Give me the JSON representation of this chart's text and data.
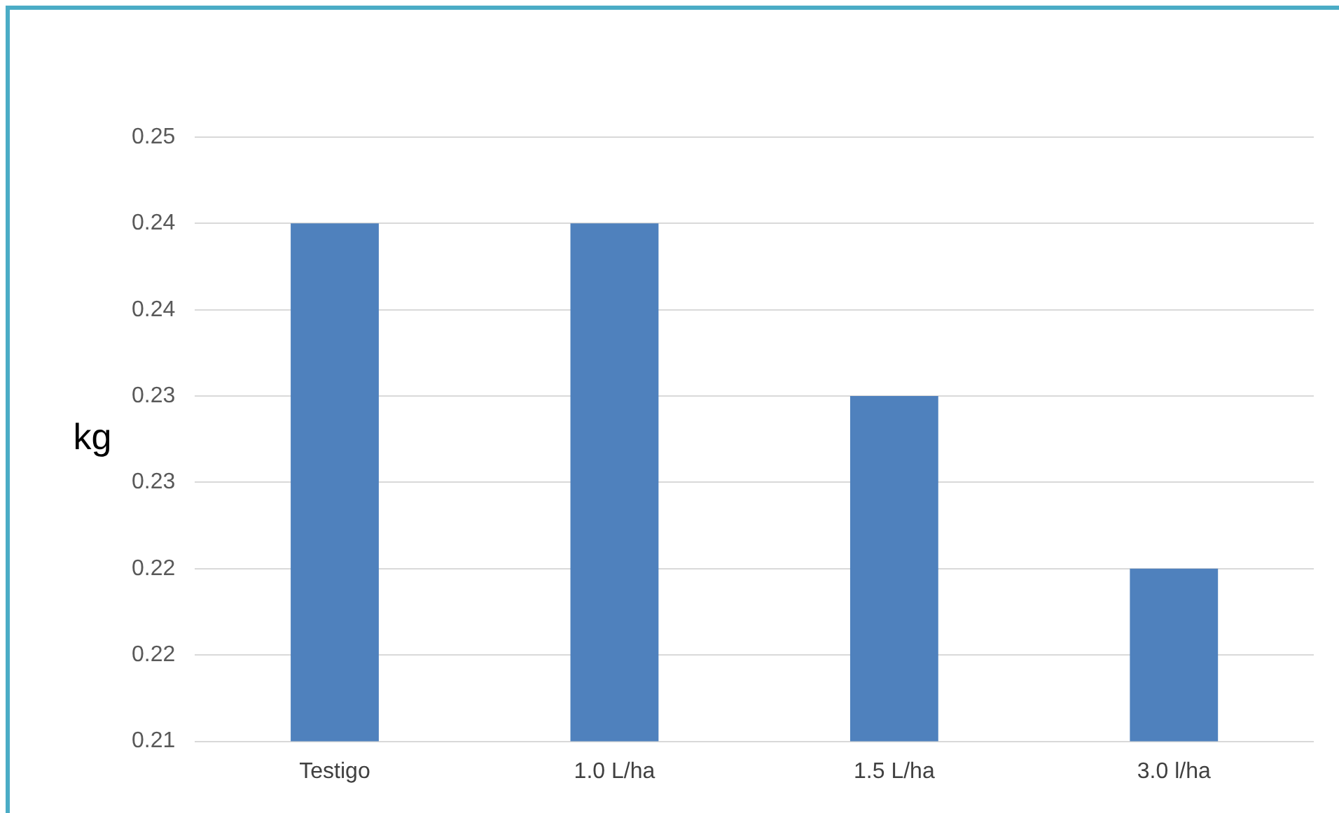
{
  "chart_data": {
    "type": "bar",
    "ylabel": "kg",
    "categories": [
      "Testigo",
      "1.0 L/ha",
      "1.5 L/ha",
      "3.0 l/ha"
    ],
    "values": [
      0.24,
      0.24,
      0.23,
      0.22
    ],
    "color": "#4f81bd",
    "ylim": [
      0.21,
      0.245
    ],
    "yticks": [
      {
        "value": 0.21,
        "label": "0.21"
      },
      {
        "value": 0.215,
        "label": "0.22"
      },
      {
        "value": 0.22,
        "label": "0.22"
      },
      {
        "value": 0.225,
        "label": "0.23"
      },
      {
        "value": 0.23,
        "label": "0.23"
      },
      {
        "value": 0.235,
        "label": "0.24"
      },
      {
        "value": 0.24,
        "label": "0.24"
      },
      {
        "value": 0.245,
        "label": "0.25"
      }
    ],
    "grid": "y",
    "legend": false
  }
}
